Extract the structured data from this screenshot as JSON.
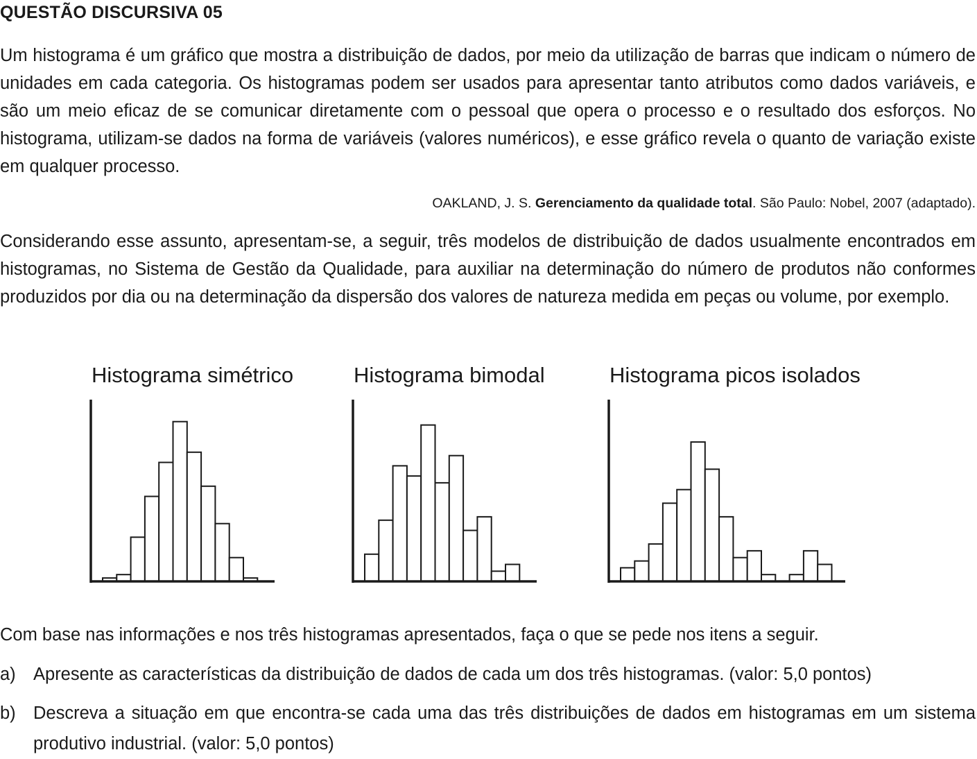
{
  "question_title": "QUESTÃO DISCURSIVA 05",
  "intro_paragraph": "Um histograma é um gráfico que mostra a distribuição de dados, por meio da utilização de barras que indicam o número de unidades em cada categoria. Os histogramas podem ser usados para apresentar tanto atributos como dados variáveis, e são um meio eficaz de se comunicar diretamente com o pessoal que opera o processo e o resultado dos esforços. No histograma, utilizam-se dados na forma de variáveis (valores numéricos), e esse gráfico revela o quanto de variação existe em qualquer processo.",
  "citation": {
    "author": "OAKLAND, J. S.",
    "work": "Gerenciamento da qualidade total",
    "details": ". São Paulo: Nobel, 2007 (adaptado)."
  },
  "context_paragraph": "Considerando esse assunto, apresentam-se, a seguir, três modelos de distribuição de dados usualmente encontrados em histogramas, no Sistema de Gestão da Qualidade, para auxiliar na determinação do número de produtos não conformes produzidos por dia ou na determinação da dispersão dos valores de natureza medida em peças ou volume, por exemplo.",
  "chart_data": [
    {
      "type": "bar",
      "title": "Histograma simétrico",
      "values": [
        1,
        2,
        13,
        25,
        35,
        47,
        38,
        28,
        17,
        7,
        1
      ],
      "ylim": [
        0,
        50
      ]
    },
    {
      "type": "bar",
      "title": "Histograma bimodal",
      "values": [
        8,
        18,
        34,
        31,
        46,
        29,
        37,
        15,
        19,
        3,
        5
      ],
      "ylim": [
        0,
        50
      ]
    },
    {
      "type": "bar",
      "title": "Histograma picos isolados",
      "values": [
        4,
        6,
        11,
        23,
        27,
        41,
        33,
        19,
        7,
        9,
        2,
        0,
        2,
        9,
        5
      ],
      "ylim": [
        0,
        50
      ]
    }
  ],
  "instruction": "Com base nas informações e nos três histogramas apresentados, faça o que se pede nos itens a seguir.",
  "items": [
    {
      "letter": "a)",
      "text": "Apresente as características da distribuição de dados de cada um dos três histogramas. (valor: 5,0 pontos)"
    },
    {
      "letter": "b)",
      "text": "Descreva a situação em que encontra-se cada uma das três distribuições de dados em histogramas em um sistema produtivo industrial. (valor: 5,0 pontos)"
    }
  ]
}
